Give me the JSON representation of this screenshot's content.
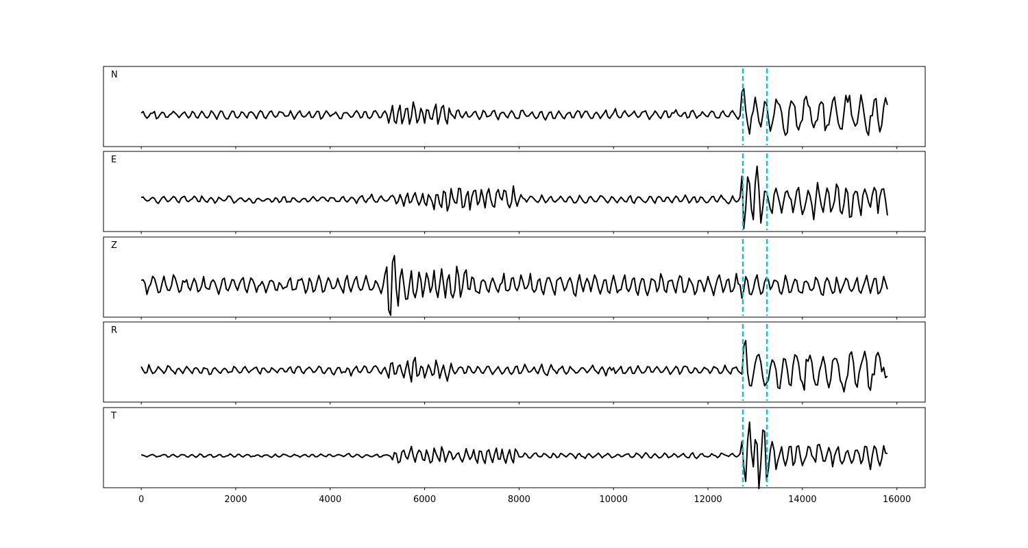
{
  "chart_data": {
    "type": "line",
    "title": "",
    "xlabel": "",
    "ylabel": "",
    "xlim": [
      -800,
      16600
    ],
    "x_ticks": [
      0,
      2000,
      4000,
      6000,
      8000,
      10000,
      12000,
      14000,
      16000
    ],
    "x_tick_labels": [
      "0",
      "2000",
      "4000",
      "6000",
      "8000",
      "10000",
      "12000",
      "14000",
      "16000"
    ],
    "n_samples": 15800,
    "grid": false,
    "line_color": "#000000",
    "marker_color": "#17becf",
    "vertical_markers": [
      12740,
      13250
    ],
    "panels": [
      {
        "label": "N",
        "seed": 11,
        "bands": [
          [
            0,
            5200,
            0.12,
            5
          ],
          [
            5200,
            6600,
            0.32,
            4
          ],
          [
            6600,
            12700,
            0.14,
            5
          ],
          [
            12700,
            12900,
            1.0,
            6
          ],
          [
            12900,
            15800,
            0.55,
            7
          ]
        ]
      },
      {
        "label": "E",
        "seed": 23,
        "bands": [
          [
            0,
            5400,
            0.1,
            5
          ],
          [
            5400,
            6200,
            0.22,
            4
          ],
          [
            6200,
            8000,
            0.38,
            4
          ],
          [
            8000,
            12700,
            0.12,
            5
          ],
          [
            12700,
            13200,
            0.95,
            4
          ],
          [
            13200,
            15800,
            0.5,
            5
          ]
        ]
      },
      {
        "label": "Z",
        "seed": 37,
        "bands": [
          [
            0,
            5100,
            0.25,
            5
          ],
          [
            5100,
            5600,
            0.95,
            4
          ],
          [
            5600,
            7000,
            0.5,
            4
          ],
          [
            7000,
            15800,
            0.32,
            5
          ]
        ]
      },
      {
        "label": "R",
        "seed": 41,
        "bands": [
          [
            0,
            5200,
            0.12,
            5
          ],
          [
            5200,
            6600,
            0.32,
            4
          ],
          [
            6600,
            12700,
            0.14,
            5
          ],
          [
            12700,
            12900,
            1.0,
            6
          ],
          [
            12900,
            15800,
            0.55,
            7
          ]
        ]
      },
      {
        "label": "T",
        "seed": 53,
        "bands": [
          [
            0,
            5300,
            0.05,
            5
          ],
          [
            5300,
            8000,
            0.25,
            4
          ],
          [
            8000,
            12700,
            0.08,
            5
          ],
          [
            12700,
            13300,
            1.0,
            4
          ],
          [
            13300,
            15800,
            0.35,
            5
          ]
        ]
      }
    ]
  }
}
